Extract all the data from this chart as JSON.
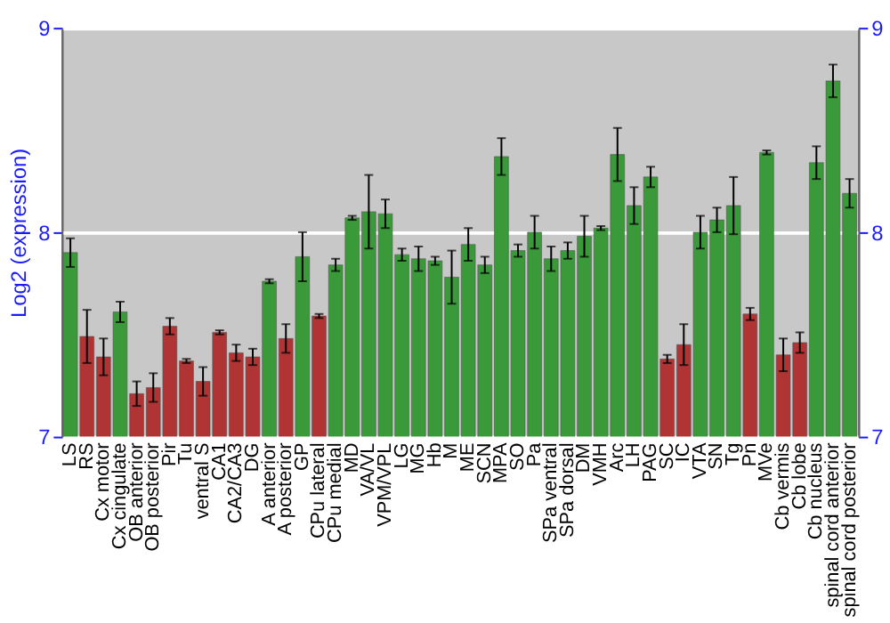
{
  "chart_data": {
    "type": "bar",
    "ylabel": "Log2 (expression)",
    "categories": [
      "LS",
      "RS",
      "Cx motor",
      "Cx cingulate",
      "OB anterior",
      "OB posterior",
      "Pir",
      "Tu",
      "ventral S",
      "CA1",
      "CA2/CA3",
      "DG",
      "A anterior",
      "A posterior",
      "GP",
      "CPu lateral",
      "CPu medial",
      "MD",
      "VA/VL",
      "VPM/VPL",
      "LG",
      "MG",
      "Hb",
      "M",
      "ME",
      "SCN",
      "MPA",
      "SO",
      "Pa",
      "SPa ventral",
      "SPa dorsal",
      "DM",
      "VMH",
      "Arc",
      "LH",
      "PAG",
      "SC",
      "IC",
      "VTA",
      "SN",
      "Tg",
      "Pn",
      "MVe",
      "Cb vermis",
      "Cb lobe",
      "Cb nucleus",
      "spinal cord anterior",
      "spinal cord posterior"
    ],
    "values": [
      7.9,
      7.49,
      7.39,
      7.61,
      7.21,
      7.24,
      7.54,
      7.37,
      7.27,
      7.51,
      7.41,
      7.39,
      7.76,
      7.48,
      7.88,
      7.59,
      7.84,
      8.07,
      8.1,
      8.09,
      7.89,
      7.87,
      7.86,
      7.78,
      7.94,
      7.84,
      8.37,
      7.91,
      8.0,
      7.87,
      7.91,
      7.98,
      8.02,
      8.38,
      8.13,
      8.27,
      7.38,
      7.45,
      8.0,
      8.06,
      8.13,
      7.6,
      8.39,
      7.4,
      7.46,
      8.34,
      8.74,
      8.19
    ],
    "errors": [
      0.07,
      0.13,
      0.09,
      0.05,
      0.06,
      0.07,
      0.04,
      0.01,
      0.07,
      0.01,
      0.04,
      0.04,
      0.01,
      0.07,
      0.12,
      0.01,
      0.03,
      0.01,
      0.18,
      0.07,
      0.03,
      0.06,
      0.02,
      0.13,
      0.08,
      0.04,
      0.09,
      0.03,
      0.08,
      0.06,
      0.04,
      0.1,
      0.01,
      0.13,
      0.09,
      0.05,
      0.02,
      0.1,
      0.08,
      0.06,
      0.14,
      0.03,
      0.01,
      0.08,
      0.05,
      0.08,
      0.08,
      0.07
    ],
    "colors": [
      "#3a9a3a",
      "#b03434",
      "#b03434",
      "#3a9a3a",
      "#b03434",
      "#b03434",
      "#b03434",
      "#b03434",
      "#b03434",
      "#b03434",
      "#b03434",
      "#b03434",
      "#3a9a3a",
      "#b03434",
      "#3a9a3a",
      "#b03434",
      "#3a9a3a",
      "#3a9a3a",
      "#3a9a3a",
      "#3a9a3a",
      "#3a9a3a",
      "#3a9a3a",
      "#3a9a3a",
      "#3a9a3a",
      "#3a9a3a",
      "#3a9a3a",
      "#3a9a3a",
      "#3a9a3a",
      "#3a9a3a",
      "#3a9a3a",
      "#3a9a3a",
      "#3a9a3a",
      "#3a9a3a",
      "#3a9a3a",
      "#3a9a3a",
      "#3a9a3a",
      "#b03434",
      "#b03434",
      "#3a9a3a",
      "#3a9a3a",
      "#3a9a3a",
      "#b03434",
      "#3a9a3a",
      "#b03434",
      "#b03434",
      "#3a9a3a",
      "#3a9a3a",
      "#3a9a3a"
    ],
    "ylim": [
      7,
      9
    ],
    "yticks": [
      7,
      8,
      9
    ],
    "y2lim": [
      7,
      9
    ],
    "y2ticks": [
      7,
      8,
      9
    ],
    "grid": "y"
  }
}
